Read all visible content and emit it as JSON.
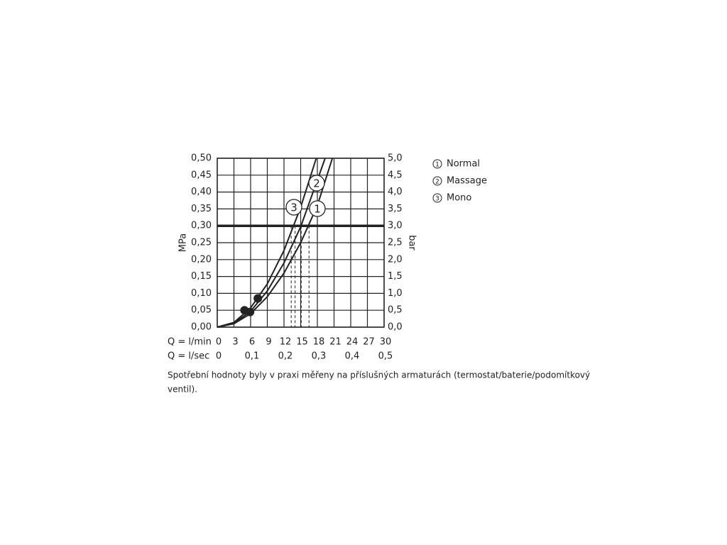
{
  "chart_data": {
    "type": "line",
    "y_label": "MPa",
    "y2_label": "bar",
    "x_label": "Q = l/min",
    "x2_label": "Q = l/sec",
    "xlim": [
      0,
      30
    ],
    "xticks": [
      0,
      3,
      6,
      9,
      12,
      15,
      18,
      21,
      24,
      27,
      30
    ],
    "x2lim": [
      0,
      0.5
    ],
    "x2ticks": [
      0,
      {
        "value": 0.1,
        "label": "0,1"
      },
      {
        "value": 0.2,
        "label": "0,2"
      },
      {
        "value": 0.3,
        "label": "0,3"
      },
      {
        "value": 0.4,
        "label": "0,4"
      },
      {
        "value": 0.5,
        "label": "0,5"
      }
    ],
    "ylim": [
      0,
      0.5
    ],
    "yticks": [
      {
        "value": 0,
        "label": "0,00"
      },
      {
        "value": 0.05,
        "label": "0,05"
      },
      {
        "value": 0.1,
        "label": "0,10"
      },
      {
        "value": 0.15,
        "label": "0,15"
      },
      {
        "value": 0.2,
        "label": "0,20"
      },
      {
        "value": 0.25,
        "label": "0,25"
      },
      {
        "value": 0.3,
        "label": "0,30"
      },
      {
        "value": 0.35,
        "label": "0,35"
      },
      {
        "value": 0.4,
        "label": "0,40"
      },
      {
        "value": 0.45,
        "label": "0,45"
      },
      {
        "value": 0.5,
        "label": "0,50"
      }
    ],
    "y2lim": [
      0,
      5
    ],
    "y2ticks": [
      {
        "value": 0,
        "label": "0,0"
      },
      {
        "value": 0.5,
        "label": "0,5"
      },
      {
        "value": 1,
        "label": "1,0"
      },
      {
        "value": 1.5,
        "label": "1,5"
      },
      {
        "value": 2,
        "label": "2,0"
      },
      {
        "value": 2.5,
        "label": "2,5"
      },
      {
        "value": 3,
        "label": "3,0"
      },
      {
        "value": 3.5,
        "label": "3,5"
      },
      {
        "value": 4,
        "label": "4,0"
      },
      {
        "value": 4.5,
        "label": "4,5"
      },
      {
        "value": 5,
        "label": "5,0"
      }
    ],
    "grid": true,
    "color": "#222222",
    "threshold": 0.3,
    "reference_flows": [
      13.3,
      14.0,
      15.1,
      16.5
    ],
    "series": [
      {
        "name": "Normal",
        "number": "1",
        "x": [
          0,
          3,
          6,
          9,
          12,
          15,
          18,
          20.7
        ],
        "values": [
          0,
          0.01,
          0.04,
          0.09,
          0.16,
          0.25,
          0.36,
          0.5
        ]
      },
      {
        "name": "Massage",
        "number": "2",
        "x": [
          0,
          3,
          6,
          9,
          12,
          15,
          19.4
        ],
        "values": [
          0,
          0.012,
          0.047,
          0.107,
          0.19,
          0.297,
          0.5
        ]
      },
      {
        "name": "Mono",
        "number": "3",
        "x": [
          0,
          3,
          6,
          9,
          12,
          15,
          17.8
        ],
        "values": [
          0,
          0.014,
          0.057,
          0.128,
          0.227,
          0.355,
          0.5
        ]
      }
    ],
    "points": {
      "x": [
        4.9,
        5.9,
        7.3
      ],
      "y": [
        0.05,
        0.045,
        0.085
      ]
    },
    "caption": [
      "Spotřební hodnoty byly v praxi měřeny na příslušných armaturách (termostat/baterie/podomítkový",
      "ventil)."
    ]
  }
}
